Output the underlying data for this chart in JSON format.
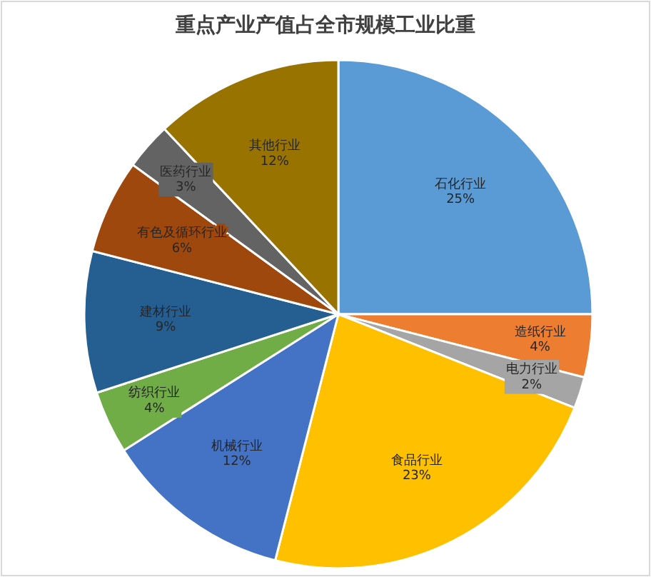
{
  "chart_data": {
    "type": "pie",
    "title": "重点产业产值占全市规模工业比重",
    "categories": [
      "石化行业",
      "造纸行业",
      "电力行业",
      "食品行业",
      "机械行业",
      "纺织行业",
      "建材行业",
      "有色及循环行业",
      "医药行业",
      "其他行业"
    ],
    "values": [
      25,
      4,
      2,
      23,
      12,
      4,
      9,
      6,
      3,
      12
    ],
    "colors": [
      "#5b9bd5",
      "#ed7d31",
      "#a5a5a5",
      "#ffc000",
      "#4472c4",
      "#70ad47",
      "#255e91",
      "#9e480e",
      "#636363",
      "#997300"
    ],
    "value_labels": [
      "25%",
      "4%",
      "2%",
      "23%",
      "12%",
      "4%",
      "9%",
      "6%",
      "3%",
      "12%"
    ]
  }
}
